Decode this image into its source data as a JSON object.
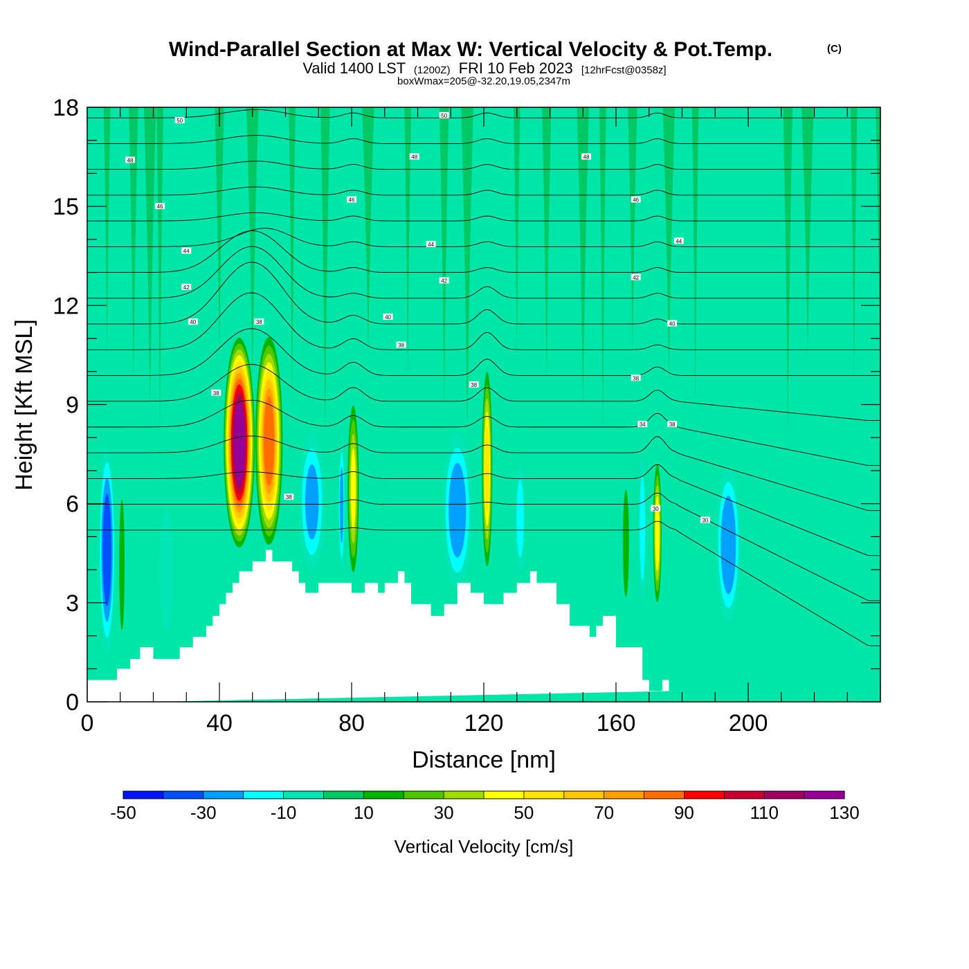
{
  "chart_data": {
    "type": "heatmap",
    "title": "Wind-Parallel Section at Max W: Vertical Velocity & Pot.Temp.",
    "title_mark": "(C)",
    "subtitle_parts": [
      "Valid 1400 LST",
      "(1200Z)",
      "FRI 10 Feb 2023",
      "[12hrFcst@0358z]"
    ],
    "subtitle2": "boxWmax=205@-32.20,19.05,2347m",
    "xlabel": "Distance [nm]",
    "ylabel": "Height [Kft MSL]",
    "xlim": [
      0,
      240
    ],
    "ylim": [
      0,
      18
    ],
    "x_ticks": [
      0,
      40,
      80,
      120,
      160,
      200
    ],
    "y_ticks": [
      0,
      3,
      6,
      9,
      12,
      15,
      18
    ],
    "colorbar": {
      "title": "Vertical Velocity [cm/s]",
      "levels": [
        -50,
        -40,
        -30,
        -20,
        -10,
        0,
        10,
        20,
        30,
        40,
        50,
        60,
        70,
        80,
        90,
        100,
        110,
        120,
        130
      ],
      "label_values": [
        -50,
        -30,
        -10,
        10,
        30,
        50,
        70,
        90,
        110,
        130
      ],
      "colors": [
        "#0014ff",
        "#0050ff",
        "#00a0ff",
        "#00ffff",
        "#00e6b4",
        "#00c864",
        "#00b400",
        "#50c800",
        "#a0dc00",
        "#ffff00",
        "#ffe600",
        "#ffc800",
        "#ffa000",
        "#ff6e00",
        "#ff0000",
        "#c80032",
        "#a00064",
        "#960096"
      ],
      "background_color": "#00e6a8"
    },
    "terrain_profile": {
      "x": [
        0,
        9,
        9,
        13,
        13,
        16,
        16,
        20,
        20,
        28,
        28,
        32,
        32,
        36,
        36,
        38,
        38,
        40,
        40,
        42,
        42,
        44,
        44,
        46,
        46,
        50,
        50,
        54,
        54,
        56,
        56,
        62,
        62,
        64,
        64,
        66,
        66,
        70,
        70,
        80,
        80,
        84,
        84,
        88,
        88,
        90,
        90,
        94,
        94,
        96,
        96,
        98,
        98,
        104,
        104,
        108,
        108,
        112,
        112,
        116,
        116,
        120,
        120,
        126,
        126,
        130,
        130,
        134,
        134,
        136,
        136,
        142,
        142,
        146,
        146,
        152,
        152,
        154,
        154,
        156,
        156,
        160,
        160,
        168,
        168,
        170,
        170,
        174,
        174,
        176,
        176,
        178,
        178,
        180,
        180,
        197,
        197,
        240
      ],
      "y": [
        0.66,
        0.66,
        1.0,
        1.0,
        1.3,
        1.3,
        1.65,
        1.65,
        1.3,
        1.3,
        1.65,
        1.65,
        1.97,
        1.97,
        2.3,
        2.3,
        2.6,
        2.6,
        2.96,
        2.96,
        3.3,
        3.3,
        3.6,
        3.6,
        3.95,
        3.95,
        4.25,
        4.25,
        4.6,
        4.6,
        4.25,
        4.25,
        3.95,
        3.95,
        3.6,
        3.6,
        3.3,
        3.3,
        3.6,
        3.6,
        3.3,
        3.3,
        3.6,
        3.6,
        3.3,
        3.3,
        3.6,
        3.6,
        3.95,
        3.95,
        3.6,
        3.6,
        2.96,
        2.96,
        2.6,
        2.6,
        2.96,
        2.96,
        3.6,
        3.6,
        3.3,
        3.3,
        2.96,
        2.96,
        3.3,
        3.3,
        3.6,
        3.6,
        3.95,
        3.95,
        3.6,
        3.6,
        2.96,
        2.96,
        2.3,
        2.3,
        1.97,
        1.97,
        2.3,
        2.3,
        2.6,
        2.6,
        1.65,
        1.65,
        0.66,
        0.66,
        0.33,
        0.33,
        0.66,
        0.66,
        0.33,
        0.33
      ]
    },
    "updrafts": [
      {
        "x": 46,
        "base": 4.5,
        "top": 11.2,
        "halfwidth": 5.0,
        "w": 125
      },
      {
        "x": 55,
        "base": 4.5,
        "top": 11.3,
        "halfwidth": 4.5,
        "w": 85
      },
      {
        "x": 80.5,
        "base": 3.5,
        "top": 9.4,
        "halfwidth": 2.0,
        "w": 40
      },
      {
        "x": 121,
        "base": 3.7,
        "top": 10.4,
        "halfwidth": 1.8,
        "w": 50
      },
      {
        "x": 172.5,
        "base": 2.7,
        "top": 7.5,
        "halfwidth": 1.5,
        "w": 45
      },
      {
        "x": 10.5,
        "base": 1.3,
        "top": 7.0,
        "halfwidth": 1.2,
        "w": 15
      },
      {
        "x": 163,
        "base": 2.3,
        "top": 7.3,
        "halfwidth": 1.5,
        "w": 12
      },
      {
        "x": 205,
        "base": 0.4,
        "top": 2.5,
        "halfwidth": 4.0,
        "w": 8
      },
      {
        "x": 192,
        "base": 1.0,
        "top": 9.0,
        "halfwidth": 4.0,
        "w": 6
      }
    ],
    "downdrafts": [
      {
        "x": 6,
        "base": 1.0,
        "top": 8.2,
        "halfwidth": 3.0,
        "w": -45
      },
      {
        "x": 24,
        "base": 1.5,
        "top": 6.5,
        "halfwidth": 3.0,
        "w": -18
      },
      {
        "x": 68,
        "base": 3.5,
        "top": 8.6,
        "halfwidth": 5.0,
        "w": -30
      },
      {
        "x": 77,
        "base": 3.5,
        "top": 8.4,
        "halfwidth": 1.2,
        "w": -32
      },
      {
        "x": 112,
        "base": 3.0,
        "top": 8.6,
        "halfwidth": 5.5,
        "w": -35
      },
      {
        "x": 131,
        "base": 3.5,
        "top": 7.6,
        "halfwidth": 2.0,
        "w": -25
      },
      {
        "x": 168,
        "base": 2.5,
        "top": 8.0,
        "halfwidth": 1.5,
        "w": -25
      },
      {
        "x": 194,
        "base": 2.0,
        "top": 7.5,
        "halfwidth": 4.5,
        "w": -38
      }
    ],
    "stratosphere_streaks": {
      "x": [
        6,
        14,
        19,
        22,
        40,
        50,
        62,
        72,
        85,
        97,
        108,
        115,
        130,
        139,
        150,
        156,
        165,
        176,
        184,
        212,
        218,
        232,
        240
      ],
      "w": 6,
      "bottom": 10.5
    },
    "theta_levels": [
      34,
      35,
      36,
      37,
      38,
      39,
      40,
      41,
      42,
      43,
      44,
      45,
      46,
      47,
      48,
      49,
      50
    ],
    "theta_labels": [
      {
        "t": "50",
        "x": 28,
        "y": 17.6
      },
      {
        "t": "50",
        "x": 108,
        "y": 17.75
      },
      {
        "t": "48",
        "x": 13,
        "y": 16.4
      },
      {
        "t": "48",
        "x": 99,
        "y": 16.5
      },
      {
        "t": "48",
        "x": 151,
        "y": 16.5
      },
      {
        "t": "46",
        "x": 22,
        "y": 15.0
      },
      {
        "t": "46",
        "x": 80,
        "y": 15.2
      },
      {
        "t": "46",
        "x": 166,
        "y": 15.2
      },
      {
        "t": "44",
        "x": 30,
        "y": 13.65
      },
      {
        "t": "44",
        "x": 104,
        "y": 13.85
      },
      {
        "t": "44",
        "x": 179,
        "y": 13.95
      },
      {
        "t": "42",
        "x": 30,
        "y": 12.55
      },
      {
        "t": "42",
        "x": 108,
        "y": 12.75
      },
      {
        "t": "42",
        "x": 166,
        "y": 12.85
      },
      {
        "t": "40",
        "x": 32,
        "y": 11.5
      },
      {
        "t": "40",
        "x": 91,
        "y": 11.65
      },
      {
        "t": "40",
        "x": 177,
        "y": 11.45
      },
      {
        "t": "38",
        "x": 52,
        "y": 11.5
      },
      {
        "t": "38",
        "x": 95,
        "y": 10.8
      },
      {
        "t": "38",
        "x": 117,
        "y": 9.6
      },
      {
        "t": "38",
        "x": 166,
        "y": 9.8
      },
      {
        "t": "38",
        "x": 177,
        "y": 8.4
      },
      {
        "t": "38",
        "x": 39,
        "y": 9.35
      },
      {
        "t": "34",
        "x": 168,
        "y": 8.4
      },
      {
        "t": "38",
        "x": 61,
        "y": 6.2
      },
      {
        "t": "30",
        "x": 172,
        "y": 5.85
      },
      {
        "t": "30",
        "x": 187,
        "y": 5.5
      }
    ]
  }
}
